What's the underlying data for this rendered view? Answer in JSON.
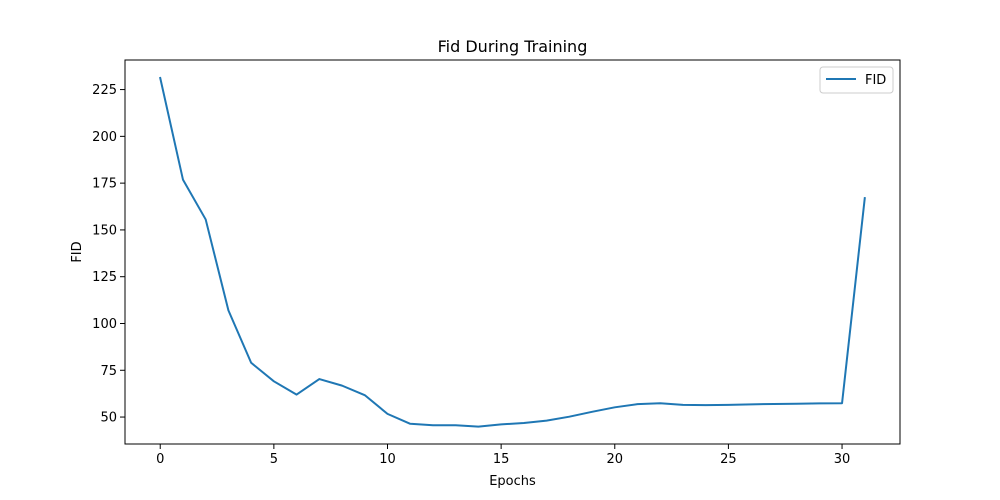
{
  "chart_data": {
    "type": "line",
    "title": "Fid During Training",
    "xlabel": "Epochs",
    "ylabel": "FID",
    "xlim": [
      -1.55,
      32.55
    ],
    "ylim": [
      35.6,
      240.8
    ],
    "xticks": [
      0,
      5,
      10,
      15,
      20,
      25,
      30
    ],
    "yticks": [
      50,
      75,
      100,
      125,
      150,
      175,
      200,
      225
    ],
    "grid": false,
    "legend": "upper-right",
    "series": [
      {
        "name": "FID",
        "color": "#1f77b4",
        "x": [
          0,
          1,
          2,
          3,
          4,
          5,
          6,
          7,
          8,
          9,
          10,
          11,
          12,
          13,
          14,
          15,
          16,
          17,
          18,
          19,
          20,
          21,
          22,
          23,
          24,
          25,
          26,
          27,
          28,
          29,
          30,
          31
        ],
        "y": [
          231.2,
          176.9,
          155.6,
          107.0,
          79.0,
          69.1,
          62.0,
          70.3,
          66.8,
          61.7,
          51.7,
          46.4,
          45.6,
          45.6,
          44.9,
          46.1,
          46.8,
          48.1,
          50.2,
          52.8,
          55.2,
          56.9,
          57.4,
          56.5,
          56.4,
          56.5,
          56.8,
          57.0,
          57.1,
          57.3,
          57.4,
          167.0
        ]
      }
    ]
  }
}
